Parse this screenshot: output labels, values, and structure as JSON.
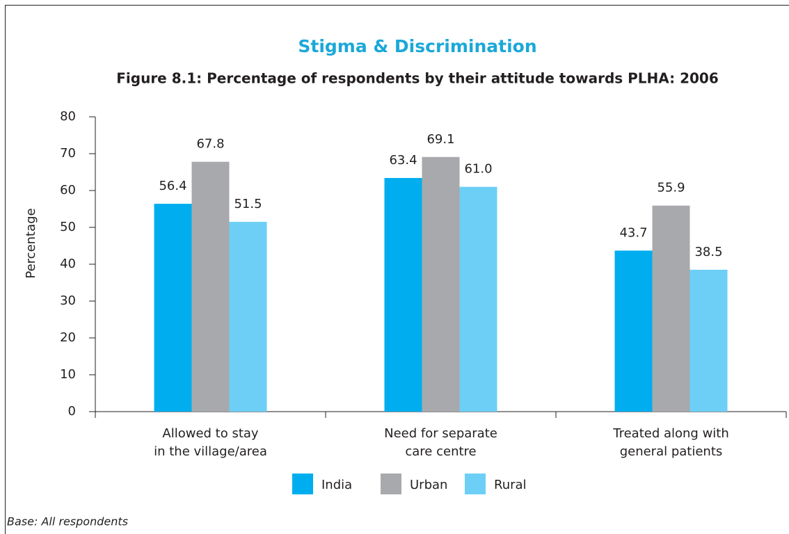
{
  "chart_data": {
    "type": "bar",
    "title": "Stigma & Discrimination",
    "subtitle": "Figure 8.1: Percentage of respondents by their attitude towards PLHA: 2006",
    "y_label": "Percentage",
    "note": "Base: All respondents",
    "categories": [
      [
        "Allowed to stay",
        "in the village/area"
      ],
      [
        "Need for separate",
        "care centre"
      ],
      [
        "Treated along with",
        "general patients"
      ]
    ],
    "series": [
      {
        "name": "India",
        "color": "#00aeef",
        "values": [
          56.4,
          63.4,
          43.7
        ],
        "value_labels": [
          "56.4",
          "63.4",
          "43.7"
        ]
      },
      {
        "name": "Urban",
        "color": "#a7a9ac",
        "values": [
          67.8,
          69.1,
          55.9
        ],
        "value_labels": [
          "67.8",
          "69.1",
          "55.9"
        ]
      },
      {
        "name": "Rural",
        "color": "#6dcff6",
        "values": [
          51.5,
          61.0,
          38.5
        ],
        "value_labels": [
          "51.5",
          "61.0",
          "38.5"
        ]
      }
    ],
    "ylim": [
      0,
      80
    ],
    "yticks": [
      0,
      10,
      20,
      30,
      40,
      50,
      60,
      70,
      80
    ],
    "legend": "bottom"
  }
}
